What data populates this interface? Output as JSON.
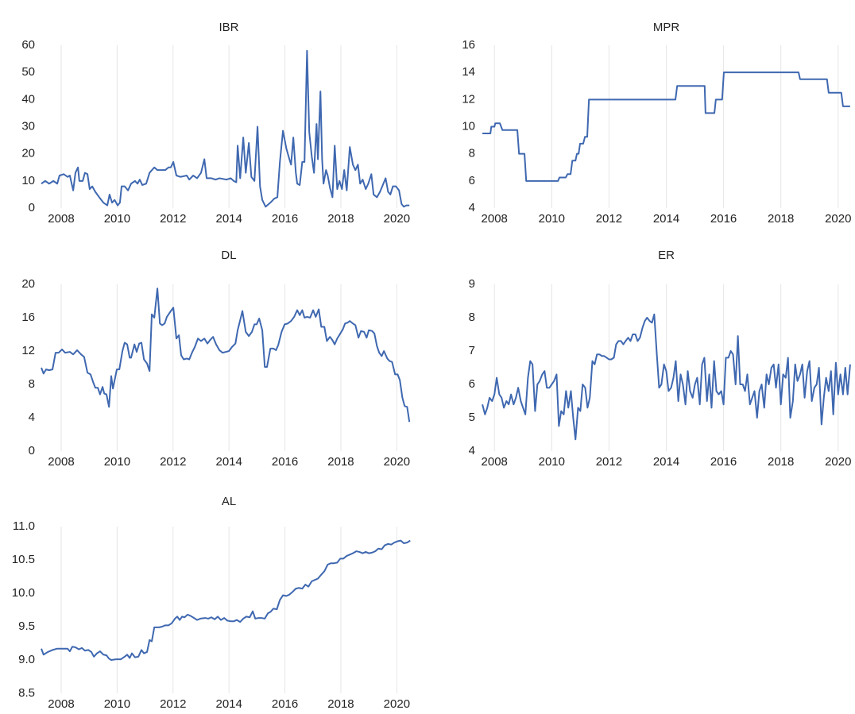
{
  "chart_data": [
    {
      "type": "line",
      "title": "IBR",
      "color": "#3f68b0",
      "xgrid": true,
      "xlim": [
        2007.29,
        2020.7
      ],
      "xticks": [
        2008,
        2010,
        2012,
        2014,
        2016,
        2018,
        2020
      ],
      "ylim": [
        0,
        60
      ],
      "yticks": [
        0,
        10,
        20,
        30,
        40,
        50,
        60
      ],
      "x": [
        2007.29,
        2007.43,
        2007.57,
        2007.72,
        2007.86,
        2007.94,
        2008.09,
        2008.23,
        2008.31,
        2008.43,
        2008.51,
        2008.6,
        2008.65,
        2008.77,
        2008.85,
        2008.94,
        2009.02,
        2009.11,
        2009.22,
        2009.36,
        2009.51,
        2009.65,
        2009.73,
        2009.82,
        2009.91,
        2010.02,
        2010.1,
        2010.16,
        2010.27,
        2010.39,
        2010.5,
        2010.64,
        2010.73,
        2010.81,
        2010.9,
        2011.04,
        2011.16,
        2011.33,
        2011.44,
        2011.72,
        2011.84,
        2011.92,
        2012.01,
        2012.12,
        2012.26,
        2012.49,
        2012.58,
        2012.72,
        2012.86,
        2013,
        2013.12,
        2013.2,
        2013.37,
        2013.52,
        2013.66,
        2013.91,
        2014.06,
        2014.17,
        2014.26,
        2014.31,
        2014.4,
        2014.51,
        2014.6,
        2014.71,
        2014.8,
        2014.91,
        2015.02,
        2015.11,
        2015.19,
        2015.31,
        2015.48,
        2015.62,
        2015.73,
        2015.82,
        2015.93,
        2016.05,
        2016.16,
        2016.22,
        2016.3,
        2016.39,
        2016.44,
        2016.53,
        2016.62,
        2016.7,
        2016.79,
        2016.87,
        2016.96,
        2017.04,
        2017.13,
        2017.18,
        2017.27,
        2017.33,
        2017.38,
        2017.47,
        2017.53,
        2017.61,
        2017.7,
        2017.78,
        2017.87,
        2017.95,
        2018.04,
        2018.12,
        2018.21,
        2018.32,
        2018.43,
        2018.52,
        2018.61,
        2018.69,
        2018.78,
        2018.89,
        2018.98,
        2019.09,
        2019.17,
        2019.29,
        2019.4,
        2019.52,
        2019.6,
        2019.69,
        2019.77,
        2019.86,
        2019.97,
        2020.08,
        2020.17,
        2020.25,
        2020.34,
        2020.45
      ],
      "values": [
        9,
        10,
        9,
        10,
        9,
        12,
        12.5,
        11.5,
        12,
        6.5,
        13,
        15,
        10,
        10,
        13,
        12.5,
        7,
        8,
        6,
        4,
        2,
        1,
        5,
        2,
        3,
        1,
        2,
        8,
        8,
        6.5,
        9,
        10,
        9,
        10.5,
        8.5,
        9,
        13,
        15,
        14,
        14,
        15,
        15,
        17,
        12,
        11.5,
        12,
        10.5,
        12,
        11,
        13,
        18,
        11,
        11,
        10.5,
        11,
        10.5,
        11,
        10,
        9.5,
        23,
        11,
        26,
        13,
        24,
        11.5,
        10,
        30,
        8,
        3,
        0.5,
        2,
        3.5,
        4,
        17,
        28.5,
        22,
        18,
        16,
        26,
        13,
        9,
        8.5,
        17,
        17,
        58,
        28,
        19,
        13,
        31,
        18,
        43,
        18,
        9,
        14,
        12,
        7.5,
        4,
        23,
        7,
        10,
        7,
        14,
        6.5,
        22.5,
        16,
        14,
        16,
        9,
        10.5,
        7,
        9,
        12.5,
        5,
        4,
        6,
        9,
        11,
        6,
        5,
        8,
        8,
        6.5,
        1.5,
        0.5,
        1,
        1
      ]
    },
    {
      "type": "line",
      "title": "MPR",
      "color": "#3f68b0",
      "xgrid": true,
      "xlim": [
        2007.55,
        2020.45
      ],
      "xticks": [
        2008,
        2010,
        2012,
        2014,
        2016,
        2018,
        2020
      ],
      "ylim": [
        4,
        16
      ],
      "yticks": [
        4,
        6,
        8,
        10,
        12,
        14,
        16
      ],
      "x": [
        2007.58,
        2007.86,
        2007.89,
        2008,
        2008.03,
        2008.19,
        2008.28,
        2008.8,
        2008.86,
        2009.05,
        2009.11,
        2010.22,
        2010.27,
        2010.49,
        2010.55,
        2010.66,
        2010.72,
        2010.83,
        2010.88,
        2010.94,
        2010.99,
        2011.1,
        2011.16,
        2011.24,
        2011.3,
        2014.32,
        2014.38,
        2015.34,
        2015.37,
        2015.68,
        2015.73,
        2015.95,
        2016.01,
        2018.62,
        2018.67,
        2019.61,
        2019.67,
        2020.11,
        2020.17,
        2020.42
      ],
      "values": [
        9.5,
        9.5,
        10,
        10,
        10.25,
        10.25,
        9.75,
        9.75,
        8,
        8,
        6,
        6,
        6.25,
        6.25,
        6.5,
        6.5,
        7.5,
        7.5,
        8,
        8,
        8.75,
        8.75,
        9.25,
        9.25,
        12,
        12,
        13,
        13,
        11,
        11,
        12,
        12,
        14,
        14,
        13.5,
        13.5,
        12.5,
        12.5,
        11.5,
        11.5
      ]
    },
    {
      "type": "line",
      "title": "DL",
      "color": "#3f68b0",
      "xgrid": true,
      "xlim": [
        2007.29,
        2020.7
      ],
      "xticks": [
        2008,
        2010,
        2012,
        2014,
        2016,
        2018,
        2020
      ],
      "ylim": [
        0,
        20
      ],
      "yticks": [
        0,
        4,
        8,
        12,
        16,
        20
      ],
      "x": [
        2007.29,
        2007.37,
        2007.46,
        2007.57,
        2007.69,
        2007.8,
        2007.91,
        2008.03,
        2008.14,
        2008.31,
        2008.43,
        2008.57,
        2008.71,
        2008.82,
        2008.94,
        2009.05,
        2009.14,
        2009.22,
        2009.31,
        2009.39,
        2009.48,
        2009.54,
        2009.62,
        2009.71,
        2009.79,
        2009.85,
        2009.99,
        2010.08,
        2010.19,
        2010.27,
        2010.36,
        2010.45,
        2010.5,
        2010.62,
        2010.7,
        2010.79,
        2010.87,
        2010.96,
        2011.07,
        2011.16,
        2011.24,
        2011.33,
        2011.44,
        2011.53,
        2011.61,
        2011.7,
        2011.78,
        2011.9,
        2012.01,
        2012.12,
        2012.21,
        2012.29,
        2012.38,
        2012.49,
        2012.58,
        2012.69,
        2012.78,
        2012.89,
        2013,
        2013.12,
        2013.23,
        2013.32,
        2013.43,
        2013.54,
        2013.66,
        2013.77,
        2013.89,
        2014,
        2014.11,
        2014.23,
        2014.31,
        2014.4,
        2014.48,
        2014.6,
        2014.71,
        2014.82,
        2014.91,
        2014.99,
        2015.08,
        2015.19,
        2015.28,
        2015.36,
        2015.48,
        2015.59,
        2015.68,
        2015.76,
        2015.88,
        2015.99,
        2016.1,
        2016.22,
        2016.33,
        2016.44,
        2016.53,
        2016.62,
        2016.7,
        2016.79,
        2016.9,
        2017.01,
        2017.1,
        2017.21,
        2017.3,
        2017.41,
        2017.5,
        2017.61,
        2017.7,
        2017.78,
        2017.87,
        2017.98,
        2018.07,
        2018.15,
        2018.24,
        2018.32,
        2018.43,
        2018.52,
        2018.63,
        2018.72,
        2018.83,
        2018.92,
        2019,
        2019.12,
        2019.2,
        2019.29,
        2019.37,
        2019.46,
        2019.54,
        2019.66,
        2019.74,
        2019.83,
        2019.94,
        2020.03,
        2020.11,
        2020.2,
        2020.28,
        2020.37,
        2020.45
      ],
      "values": [
        10,
        9.3,
        9.8,
        9.7,
        9.8,
        11.8,
        11.8,
        12.2,
        11.8,
        11.9,
        11.6,
        12.1,
        11.6,
        11.3,
        9.4,
        9.2,
        8.3,
        7.6,
        7.6,
        6.8,
        7.7,
        6.9,
        6.8,
        5.3,
        9,
        7.5,
        9.8,
        9.8,
        12,
        13,
        12.8,
        11.2,
        11.2,
        12.8,
        11.9,
        12.9,
        13,
        11,
        10.5,
        9.6,
        16.4,
        16,
        19.5,
        15.3,
        15.1,
        15.3,
        16.1,
        16.7,
        17.2,
        13.5,
        13.9,
        11.5,
        11,
        11.1,
        11,
        11.9,
        12.5,
        13.5,
        13.2,
        13.5,
        12.9,
        13.3,
        13.7,
        12.8,
        12.1,
        11.8,
        11.9,
        12,
        12.5,
        12.9,
        14.5,
        15.7,
        16.8,
        14.3,
        13.8,
        14.3,
        15.2,
        15.2,
        15.9,
        14.5,
        10.1,
        10.1,
        12.3,
        12.3,
        12.1,
        12.7,
        14.3,
        15.2,
        15.3,
        15.6,
        16.1,
        16.9,
        16.3,
        16.9,
        16,
        16.1,
        16,
        16.9,
        16.1,
        17,
        14.9,
        14.9,
        13.2,
        13.7,
        13.3,
        12.8,
        13.5,
        14.1,
        14.6,
        15.3,
        15.4,
        15.6,
        15.3,
        15.1,
        13.6,
        14.4,
        14.3,
        13.6,
        14.5,
        14.4,
        14.1,
        12.6,
        11.8,
        11.4,
        12,
        11.1,
        10.8,
        10.7,
        9.2,
        9.2,
        8.5,
        6.4,
        5.4,
        5.3,
        3.5
      ]
    },
    {
      "type": "line",
      "title": "ER",
      "color": "#3f68b0",
      "xgrid": true,
      "xlim": [
        2007.55,
        2020.45
      ],
      "xticks": [
        2008,
        2010,
        2012,
        2014,
        2016,
        2018,
        2020
      ],
      "ylim": [
        4,
        9
      ],
      "yticks": [
        4,
        5,
        6,
        7,
        8,
        9
      ],
      "x": [
        2007.58,
        2007.67,
        2007.75,
        2007.83,
        2007.92,
        2008,
        2008.08,
        2008.17,
        2008.25,
        2008.33,
        2008.42,
        2008.5,
        2008.58,
        2008.67,
        2008.75,
        2008.83,
        2008.92,
        2009,
        2009.08,
        2009.17,
        2009.25,
        2009.33,
        2009.42,
        2009.5,
        2009.58,
        2009.67,
        2009.75,
        2009.83,
        2009.92,
        2010,
        2010.08,
        2010.17,
        2010.25,
        2010.33,
        2010.42,
        2010.5,
        2010.58,
        2010.67,
        2010.75,
        2010.83,
        2010.92,
        2011,
        2011.08,
        2011.17,
        2011.25,
        2011.33,
        2011.42,
        2011.5,
        2011.58,
        2011.67,
        2011.75,
        2011.83,
        2011.92,
        2012,
        2012.08,
        2012.17,
        2012.25,
        2012.33,
        2012.42,
        2012.5,
        2012.58,
        2012.67,
        2012.75,
        2012.83,
        2012.92,
        2013,
        2013.08,
        2013.17,
        2013.25,
        2013.33,
        2013.42,
        2013.5,
        2013.58,
        2013.67,
        2013.75,
        2013.83,
        2013.92,
        2014,
        2014.08,
        2014.17,
        2014.25,
        2014.33,
        2014.42,
        2014.5,
        2014.58,
        2014.67,
        2014.75,
        2014.83,
        2014.92,
        2015,
        2015.08,
        2015.17,
        2015.25,
        2015.33,
        2015.42,
        2015.5,
        2015.58,
        2015.67,
        2015.75,
        2015.83,
        2015.92,
        2016,
        2016.08,
        2016.17,
        2016.25,
        2016.33,
        2016.42,
        2016.5,
        2016.58,
        2016.67,
        2016.75,
        2016.83,
        2016.92,
        2017,
        2017.08,
        2017.17,
        2017.25,
        2017.33,
        2017.42,
        2017.5,
        2017.58,
        2017.67,
        2017.75,
        2017.83,
        2017.92,
        2018,
        2018.08,
        2018.17,
        2018.25,
        2018.33,
        2018.42,
        2018.5,
        2018.58,
        2018.67,
        2018.75,
        2018.83,
        2018.92,
        2019,
        2019.08,
        2019.17,
        2019.25,
        2019.33,
        2019.42,
        2019.5,
        2019.58,
        2019.67,
        2019.75,
        2019.83,
        2019.92,
        2020,
        2020.08,
        2020.17,
        2020.25,
        2020.33,
        2020.42
      ],
      "values": [
        5.4,
        5.1,
        5.3,
        5.6,
        5.5,
        5.7,
        6.2,
        5.7,
        5.6,
        5.3,
        5.5,
        5.4,
        5.7,
        5.4,
        5.6,
        5.9,
        5.5,
        5.3,
        5.1,
        6.2,
        6.7,
        6.6,
        5.2,
        6,
        6.1,
        6.3,
        6.4,
        5.9,
        5.9,
        6,
        6.1,
        6.3,
        4.75,
        5.2,
        5.1,
        5.8,
        5.3,
        5.8,
        5,
        4.35,
        5.3,
        5.2,
        6,
        5.9,
        5.3,
        5.6,
        6.7,
        6.6,
        6.9,
        6.9,
        6.85,
        6.85,
        6.8,
        6.75,
        6.75,
        6.8,
        7.2,
        7.3,
        7.3,
        7.2,
        7.3,
        7.4,
        7.3,
        7.5,
        7.5,
        7.3,
        7.4,
        7.7,
        7.9,
        8,
        7.9,
        7.85,
        8.1,
        6.9,
        5.9,
        6,
        6.6,
        6.4,
        5.8,
        5.9,
        6.2,
        6.7,
        5.5,
        6.3,
        6,
        5.4,
        6.4,
        5.8,
        5.6,
        6,
        6.2,
        5.4,
        6.6,
        6.8,
        5.5,
        6.3,
        5.3,
        6.7,
        5.8,
        5.7,
        5.8,
        5.4,
        6.8,
        6.8,
        7,
        6.9,
        6,
        7.45,
        6,
        6,
        5.8,
        6.3,
        5.4,
        5.6,
        5.8,
        5,
        5.8,
        6,
        5.3,
        6.3,
        6,
        6.5,
        6.6,
        5.9,
        6.6,
        5.4,
        6.3,
        6.2,
        6.8,
        5,
        5.5,
        6.6,
        6.1,
        6.3,
        6.6,
        5.6,
        6.4,
        6.7,
        5.5,
        5.9,
        6,
        6.5,
        4.8,
        5.6,
        6.2,
        5.8,
        6.4,
        5.1,
        6.65,
        5.7,
        6.3,
        5.7,
        6.5,
        5.7,
        6.6
      ]
    },
    {
      "type": "line",
      "title": "AL",
      "color": "#3f68b0",
      "xgrid": true,
      "xlim": [
        2007.29,
        2020.7
      ],
      "xticks": [
        2008,
        2010,
        2012,
        2014,
        2016,
        2018,
        2020
      ],
      "ylim": [
        8.5,
        11
      ],
      "yticks": [
        8.5,
        {
          "value": 9,
          "label": "9.0"
        },
        9.5,
        {
          "value": 10,
          "label": "10.0"
        },
        10.5,
        {
          "value": 11,
          "label": "11.0"
        }
      ],
      "x": [
        2007.29,
        2007.37,
        2007.52,
        2007.69,
        2007.86,
        2008.09,
        2008.23,
        2008.31,
        2008.4,
        2008.51,
        2008.63,
        2008.74,
        2008.85,
        2008.97,
        2009.08,
        2009.17,
        2009.28,
        2009.39,
        2009.51,
        2009.62,
        2009.71,
        2009.79,
        2009.96,
        2010.13,
        2010.27,
        2010.36,
        2010.45,
        2010.53,
        2010.64,
        2010.76,
        2010.87,
        2010.96,
        2011.07,
        2011.16,
        2011.24,
        2011.33,
        2011.5,
        2011.61,
        2011.72,
        2011.84,
        2011.95,
        2012.07,
        2012.15,
        2012.24,
        2012.32,
        2012.41,
        2012.52,
        2012.63,
        2012.75,
        2012.86,
        2012.98,
        2013.15,
        2013.26,
        2013.37,
        2013.49,
        2013.6,
        2013.71,
        2013.83,
        2013.94,
        2014.06,
        2014.17,
        2014.28,
        2014.4,
        2014.51,
        2014.62,
        2014.74,
        2014.85,
        2014.94,
        2015.05,
        2015.16,
        2015.28,
        2015.39,
        2015.48,
        2015.59,
        2015.71,
        2015.82,
        2015.93,
        2016.05,
        2016.16,
        2016.27,
        2016.39,
        2016.5,
        2016.62,
        2016.73,
        2016.84,
        2016.96,
        2017.07,
        2017.18,
        2017.3,
        2017.41,
        2017.53,
        2017.64,
        2017.75,
        2017.87,
        2017.98,
        2018.09,
        2018.21,
        2018.32,
        2018.43,
        2018.55,
        2018.66,
        2018.78,
        2018.89,
        2019,
        2019.12,
        2019.23,
        2019.34,
        2019.46,
        2019.57,
        2019.69,
        2019.8,
        2019.91,
        2020.03,
        2020.14,
        2020.25,
        2020.37,
        2020.48
      ],
      "values": [
        9.17,
        9.08,
        9.12,
        9.15,
        9.17,
        9.17,
        9.17,
        9.13,
        9.2,
        9.19,
        9.16,
        9.18,
        9.14,
        9.15,
        9.12,
        9.05,
        9.1,
        9.13,
        9.08,
        9.07,
        9.02,
        9,
        9.01,
        9.01,
        9.05,
        9.08,
        9.03,
        9.1,
        9.04,
        9.05,
        9.15,
        9.1,
        9.12,
        9.3,
        9.28,
        9.49,
        9.49,
        9.5,
        9.52,
        9.52,
        9.55,
        9.62,
        9.65,
        9.6,
        9.65,
        9.64,
        9.68,
        9.66,
        9.63,
        9.6,
        9.62,
        9.63,
        9.62,
        9.64,
        9.61,
        9.65,
        9.6,
        9.63,
        9.59,
        9.58,
        9.58,
        9.6,
        9.57,
        9.62,
        9.65,
        9.64,
        9.73,
        9.62,
        9.63,
        9.63,
        9.62,
        9.7,
        9.72,
        9.77,
        9.76,
        9.9,
        9.97,
        9.96,
        9.98,
        10.02,
        10.07,
        10.08,
        10.07,
        10.13,
        10.1,
        10.18,
        10.2,
        10.22,
        10.28,
        10.33,
        10.43,
        10.45,
        10.45,
        10.46,
        10.52,
        10.52,
        10.56,
        10.58,
        10.6,
        10.63,
        10.62,
        10.6,
        10.62,
        10.6,
        10.61,
        10.63,
        10.67,
        10.66,
        10.72,
        10.74,
        10.73,
        10.76,
        10.78,
        10.79,
        10.75,
        10.76,
        10.79
      ]
    }
  ]
}
